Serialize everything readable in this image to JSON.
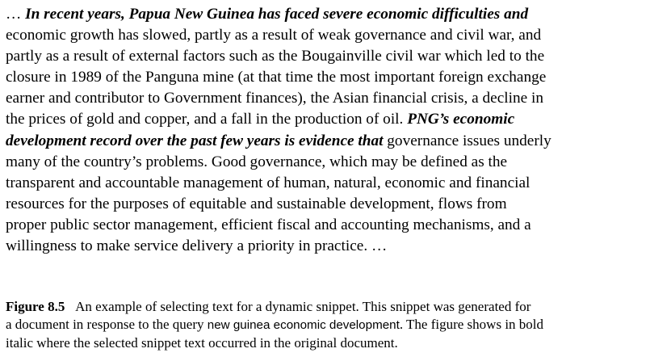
{
  "snippet": {
    "lines": [
      [
        {
          "t": "… ",
          "s": false
        },
        {
          "t": "In recent years, Papua New Guinea has faced severe economic difficulties and",
          "s": true
        }
      ],
      [
        {
          "t": "economic growth has slowed, partly as a result of weak governance and civil war, and",
          "s": false
        }
      ],
      [
        {
          "t": "partly as a result of external factors such as the Bougainville civil war which led to the",
          "s": false
        }
      ],
      [
        {
          "t": "closure in 1989 of the Panguna mine (at that time the most important foreign exchange",
          "s": false
        }
      ],
      [
        {
          "t": "earner and contributor to Government finances), the Asian financial crisis, a decline in",
          "s": false
        }
      ],
      [
        {
          "t": "the prices of gold and copper, and a fall in the production of oil. ",
          "s": false
        },
        {
          "t": "PNG’s economic",
          "s": true
        }
      ],
      [
        {
          "t": "development record over the past few years is evidence that",
          "s": true
        },
        {
          "t": " governance issues underly",
          "s": false
        }
      ],
      [
        {
          "t": "many of the country’s problems. Good governance, which may be defined as the",
          "s": false
        }
      ],
      [
        {
          "t": "transparent and accountable management of human, natural, economic and financial",
          "s": false
        }
      ],
      [
        {
          "t": "resources for the purposes of equitable and sustainable development, flows from",
          "s": false
        }
      ],
      [
        {
          "t": "proper public sector management, efficient fiscal and accounting mechanisms, and a",
          "s": false
        }
      ],
      [
        {
          "t": "willingness to make service delivery a priority in practice. …",
          "s": false
        }
      ]
    ]
  },
  "caption": {
    "label": "Figure 8.5",
    "line1": "An example of selecting text for a dynamic snippet. This snippet was generated for",
    "line2_prefix": "a document in response to the query ",
    "query": "new guinea economic development",
    "line2_suffix": ". The figure shows in bold",
    "line3": "italic where the selected snippet text occurred in the original document."
  }
}
